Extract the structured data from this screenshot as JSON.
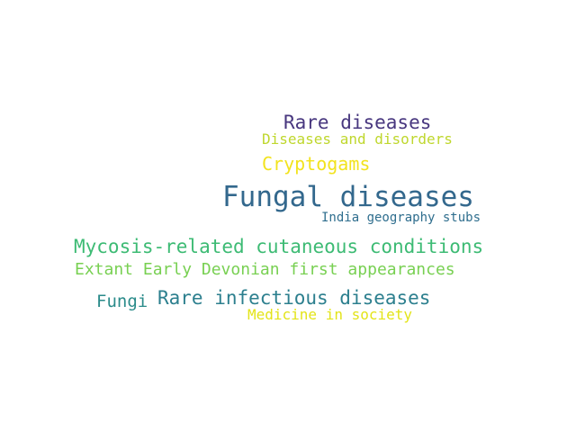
{
  "background_color": "#ffffff",
  "words": [
    {
      "text": "Rare diseases",
      "color": "#48377f"
    },
    {
      "text": "Diseases and disorders",
      "color": "#bfd72d"
    },
    {
      "text": "Cryptogams",
      "color": "#f2e31d"
    },
    {
      "text": "Fungal diseases",
      "color": "#33688d"
    },
    {
      "text": "India geography stubs",
      "color": "#2f6e8e"
    },
    {
      "text": "Mycosis-related cutaneous conditions",
      "color": "#3dbb74"
    },
    {
      "text": "Extant Early Devonian first appearances",
      "color": "#78d052"
    },
    {
      "text": "Rare infectious diseases",
      "color": "#2c7f8e"
    },
    {
      "text": "Fungi",
      "color": "#2a8b8a"
    },
    {
      "text": "Medicine in society",
      "color": "#e3e419"
    }
  ]
}
